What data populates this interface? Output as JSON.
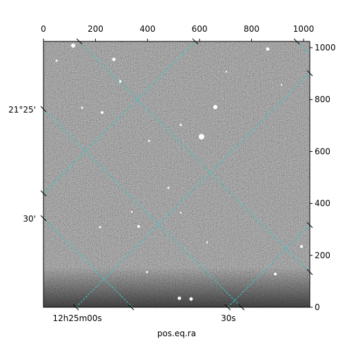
{
  "chart_data": {
    "type": "image",
    "x_label": "pos.eq.ra",
    "xlim": [
      0,
      1024
    ],
    "xticks": [
      0,
      200,
      400,
      600,
      800,
      1000
    ],
    "ylim": [
      0,
      1024
    ],
    "yticks": [
      0,
      200,
      400,
      600,
      800,
      1000
    ],
    "ra_tick_labels": [
      "12h25m00s",
      "30s"
    ],
    "dec_tick_labels": [
      "21°25'",
      "30'"
    ],
    "grid_color": "#33cccc"
  }
}
